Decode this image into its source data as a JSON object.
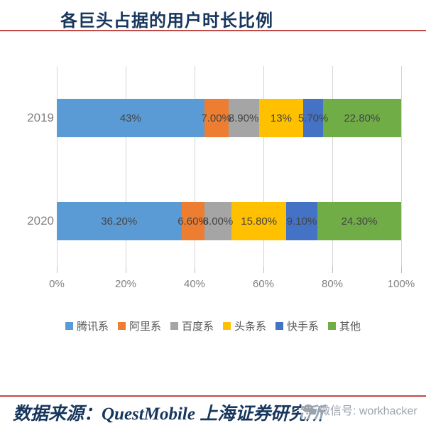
{
  "header": {
    "title": "各巨头占据的用户时长比例"
  },
  "chart_data": {
    "type": "bar",
    "orientation": "horizontal",
    "stacked": true,
    "title": "各巨头占据的用户时长比例",
    "categories": [
      "2019",
      "2020"
    ],
    "series": [
      {
        "name": "腾讯系",
        "color": "#5b9bd5",
        "values": [
          43,
          36.2
        ],
        "labels": [
          "43%",
          "36.20%"
        ]
      },
      {
        "name": "阿里系",
        "color": "#ed7d31",
        "values": [
          7,
          6.6
        ],
        "labels": [
          "7.00%",
          "6.60%"
        ]
      },
      {
        "name": "百度系",
        "color": "#a5a5a5",
        "values": [
          8.9,
          8
        ],
        "labels": [
          "8.90%",
          "8.00%"
        ]
      },
      {
        "name": "头条系",
        "color": "#ffc000",
        "values": [
          13,
          15.8
        ],
        "labels": [
          "13%",
          "15.80%"
        ]
      },
      {
        "name": "快手系",
        "color": "#4472c4",
        "values": [
          5.7,
          9.1
        ],
        "labels": [
          "5.70%",
          "9.10%"
        ]
      },
      {
        "name": "其他",
        "color": "#70ad47",
        "values": [
          22.8,
          24.3
        ],
        "labels": [
          "22.80%",
          "24.30%"
        ]
      }
    ],
    "x_axis": {
      "ticks": [
        "0%",
        "20%",
        "40%",
        "60%",
        "80%",
        "100%"
      ],
      "range": [
        0,
        100
      ]
    },
    "grid": true,
    "legend_position": "bottom"
  },
  "footer": {
    "source": "数据来源：QuestMobile 上海证券研究所",
    "watermark_label": "微信号: workhacker"
  }
}
